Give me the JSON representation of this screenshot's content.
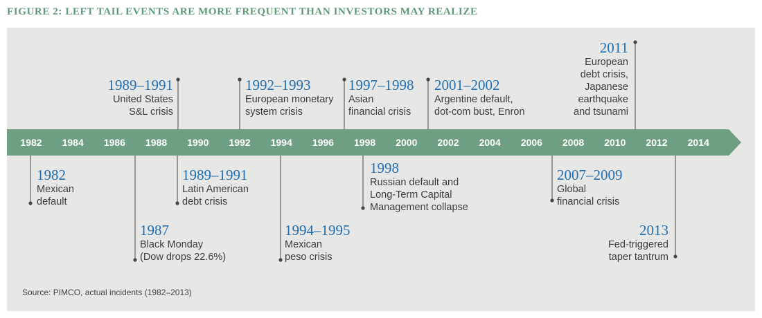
{
  "title": "FIGURE 2: LEFT TAIL EVENTS ARE MORE FREQUENT THAN INVESTORS MAY REALIZE",
  "axis_years": [
    "1982",
    "1984",
    "1986",
    "1988",
    "1990",
    "1992",
    "1994",
    "1996",
    "1998",
    "2000",
    "2002",
    "2004",
    "2006",
    "2008",
    "2010",
    "2012",
    "2014"
  ],
  "colors": {
    "arrow": "#6f9f82",
    "accent_year": "#1f6fb4",
    "panel": "#e7e7e6",
    "title": "#5e9a78"
  },
  "events": [
    {
      "year": "1982",
      "desc": "Mexican\ndefault"
    },
    {
      "year": "1987",
      "desc": "Black Monday\n(Dow drops 22.6%)"
    },
    {
      "year": "1989–1991",
      "desc": "United States\nS&L crisis"
    },
    {
      "year": "1989–1991",
      "desc": "Latin American\ndebt crisis"
    },
    {
      "year": "1992–1993",
      "desc": "European monetary\nsystem crisis"
    },
    {
      "year": "1994–1995",
      "desc": "Mexican\npeso crisis"
    },
    {
      "year": "1997–1998",
      "desc": "Asian\nfinancial crisis"
    },
    {
      "year": "1998",
      "desc": "Russian default and\nLong-Term Capital\nManagement collapse"
    },
    {
      "year": "2001–2002",
      "desc": "Argentine default,\ndot-com bust, Enron"
    },
    {
      "year": "2007–2009",
      "desc": "Global\nfinancial crisis"
    },
    {
      "year": "2011",
      "desc": "European\ndebt crisis,\nJapanese\nearthquake\nand tsunami"
    },
    {
      "year": "2013",
      "desc": "Fed-triggered\ntaper tantrum"
    }
  ],
  "source": "Source: PIMCO, actual incidents (1982–2013)"
}
